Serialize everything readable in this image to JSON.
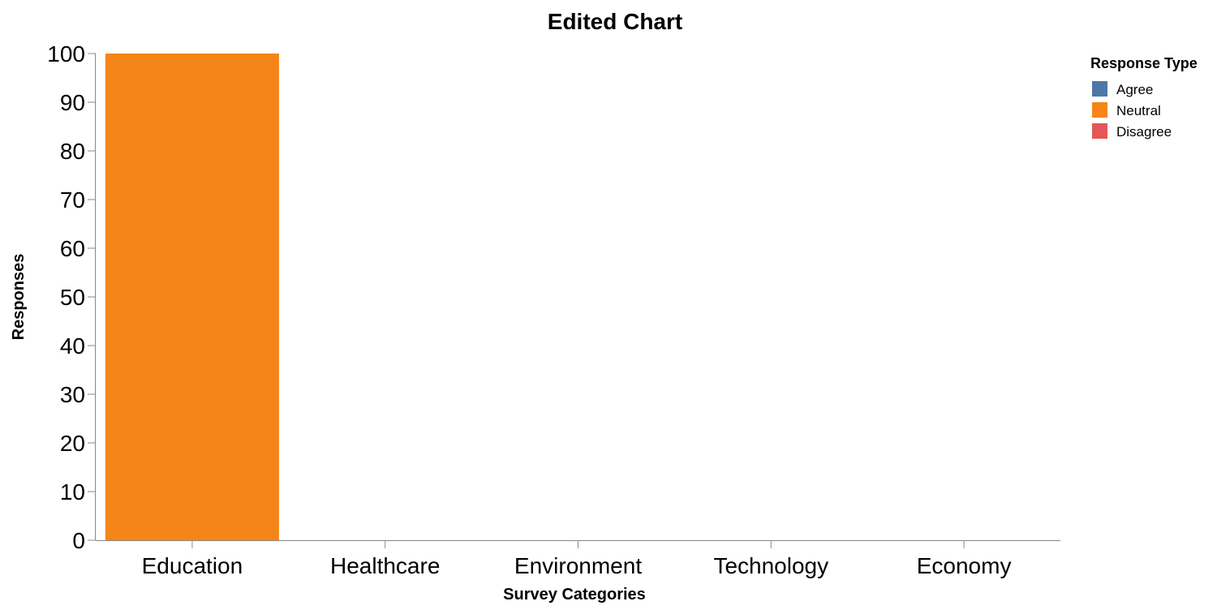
{
  "chart_data": {
    "type": "bar",
    "title": "Edited Chart",
    "xlabel": "Survey Categories",
    "ylabel": "Responses",
    "categories": [
      "Education",
      "Healthcare",
      "Environment",
      "Technology",
      "Economy"
    ],
    "ylim": [
      0,
      100
    ],
    "yticks": [
      0,
      10,
      20,
      30,
      40,
      50,
      60,
      70,
      80,
      90,
      100
    ],
    "series": [
      {
        "name": "Agree",
        "color": "#4c78a8",
        "values": [
          0,
          0,
          0,
          0,
          0
        ]
      },
      {
        "name": "Neutral",
        "color": "#f58518",
        "values": [
          100,
          0,
          0,
          0,
          0
        ]
      },
      {
        "name": "Disagree",
        "color": "#e45756",
        "values": [
          0,
          0,
          0,
          0,
          0
        ]
      }
    ],
    "legend": {
      "title": "Response Type",
      "placement": "top-right"
    },
    "grid": false
  }
}
